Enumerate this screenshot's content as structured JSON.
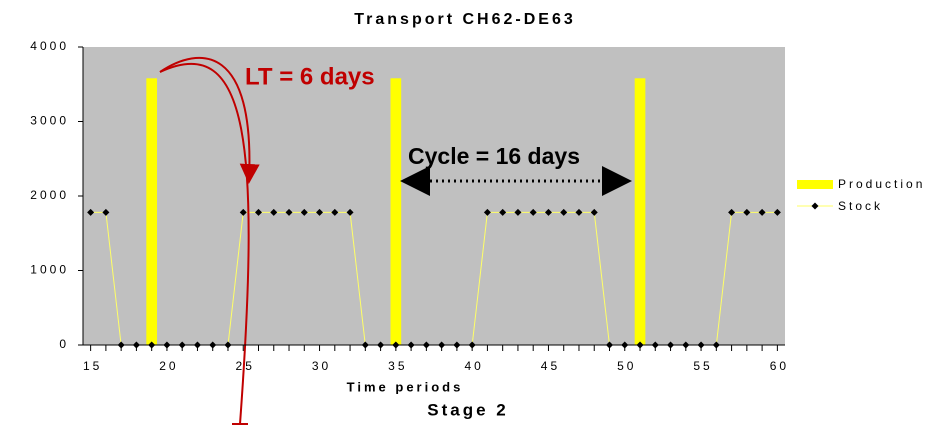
{
  "chart_data": {
    "type": "bar_line",
    "title": "Transport CH62-DE63",
    "x_label": "Time periods",
    "subtitle": "Stage 2",
    "xlim": [
      14.5,
      60.5
    ],
    "xticks": [
      15,
      20,
      25,
      30,
      35,
      40,
      45,
      50,
      55,
      60
    ],
    "ylim": [
      0,
      4000
    ],
    "yticks": [
      0,
      1000,
      2000,
      3000,
      4000
    ],
    "background": "#c0c0c0",
    "legend": "right",
    "annotations": [
      "LT = 6 days",
      "Cycle = 16 days"
    ],
    "series": [
      {
        "name": "Production",
        "type": "bar",
        "color": "#ffff00",
        "x": [
          19,
          35,
          51
        ],
        "values": [
          3580,
          3580,
          3580
        ]
      },
      {
        "name": "Stock",
        "type": "line",
        "color": "#ffff66",
        "marker_color": "#000000",
        "x": [
          15,
          16,
          17,
          18,
          19,
          20,
          21,
          22,
          23,
          24,
          25,
          26,
          27,
          28,
          29,
          30,
          31,
          32,
          33,
          34,
          35,
          36,
          37,
          38,
          39,
          40,
          41,
          42,
          43,
          44,
          45,
          46,
          47,
          48,
          49,
          50,
          51,
          52,
          53,
          54,
          55,
          56,
          57,
          58,
          59,
          60
        ],
        "values": [
          1780,
          1780,
          0,
          0,
          0,
          0,
          0,
          0,
          0,
          0,
          1780,
          1780,
          1780,
          1780,
          1780,
          1780,
          1780,
          1780,
          0,
          0,
          0,
          0,
          0,
          0,
          0,
          0,
          1780,
          1780,
          1780,
          1780,
          1780,
          1780,
          1780,
          1780,
          0,
          0,
          0,
          0,
          0,
          0,
          0,
          0,
          1780,
          1780,
          1780,
          1780
        ]
      }
    ]
  }
}
